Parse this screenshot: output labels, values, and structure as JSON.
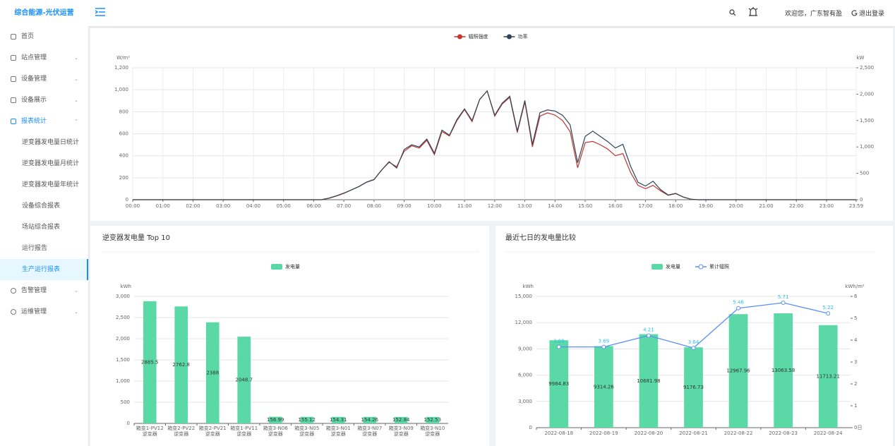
{
  "header": {
    "brand": "综合能源-光伏运营",
    "welcome": "欢迎您，广东智有盈",
    "logout": "退出登录"
  },
  "sidebar": {
    "menu": [
      "首页",
      "站点管理",
      "设备管理",
      "设备展示",
      "报表统计",
      "告警管理",
      "运维管理"
    ],
    "submenu": [
      "逆变器发电量日统计",
      "逆变器发电量月统计",
      "逆变器发电量年统计",
      "设备综合报表",
      "场站综合报表",
      "运行报告",
      "生产运行报表"
    ]
  },
  "chart_data": [
    {
      "type": "line",
      "legend_position": "top",
      "grid": true,
      "y_label": "W/m²",
      "y2_label": "kW",
      "x": [
        "00:00",
        "06:00",
        "06:15",
        "06:30",
        "06:45",
        "07:00",
        "07:15",
        "07:30",
        "07:45",
        "08:00",
        "08:15",
        "08:30",
        "08:45",
        "09:00",
        "09:15",
        "09:30",
        "09:45",
        "10:00",
        "10:15",
        "10:30",
        "10:45",
        "11:00",
        "11:15",
        "11:30",
        "11:45",
        "12:00",
        "12:15",
        "12:30",
        "12:45",
        "13:00",
        "13:15",
        "13:30",
        "13:45",
        "14:00",
        "14:15",
        "14:30",
        "14:45",
        "15:00",
        "15:15",
        "15:30",
        "15:45",
        "16:00",
        "16:15",
        "16:30",
        "16:45",
        "17:00",
        "17:15",
        "17:30",
        "17:45",
        "18:00",
        "18:15",
        "18:30",
        "18:45",
        "19:00",
        "23:59"
      ],
      "series": [
        {
          "name": "辐照强度",
          "color": "#c23531",
          "values": [
            0,
            0,
            0,
            15,
            35,
            60,
            90,
            120,
            160,
            185,
            270,
            340,
            300,
            440,
            490,
            470,
            540,
            410,
            620,
            580,
            720,
            820,
            710,
            910,
            990,
            760,
            870,
            930,
            610,
            890,
            480,
            760,
            790,
            770,
            720,
            620,
            290,
            520,
            530,
            500,
            460,
            400,
            420,
            250,
            130,
            100,
            130,
            80,
            40,
            55,
            25,
            5,
            0,
            0,
            0
          ]
        },
        {
          "name": "功率",
          "color": "#2f4554",
          "axis": "y2",
          "values": [
            0,
            0,
            0,
            25,
            70,
            120,
            185,
            250,
            330,
            380,
            560,
            720,
            600,
            950,
            1040,
            1000,
            1150,
            880,
            1320,
            1220,
            1520,
            1720,
            1500,
            1900,
            2060,
            1600,
            1830,
            1960,
            1300,
            1880,
            1050,
            1650,
            1700,
            1680,
            1600,
            1420,
            700,
            1200,
            1300,
            1200,
            1100,
            980,
            1050,
            640,
            330,
            260,
            350,
            190,
            90,
            120,
            50,
            10,
            0,
            0,
            0
          ]
        }
      ],
      "xticks": [
        "00:00",
        "01:00",
        "02:00",
        "03:00",
        "04:00",
        "05:00",
        "06:00",
        "07:00",
        "08:00",
        "09:00",
        "10:00",
        "11:00",
        "12:00",
        "13:00",
        "14:00",
        "15:00",
        "16:00",
        "17:00",
        "18:00",
        "19:00",
        "20:00",
        "21:00",
        "22:00",
        "23:00",
        "23:59"
      ],
      "ylim": [
        0,
        1200
      ],
      "yticks": [
        0,
        200,
        400,
        600,
        800,
        {
          "value": 1000,
          "label": "1,000"
        },
        {
          "value": 1200,
          "label": "1,200"
        }
      ],
      "y2lim": [
        0,
        2500
      ],
      "y2ticks": [
        0,
        500,
        {
          "value": 1000,
          "label": "1,000"
        },
        {
          "value": 1500,
          "label": "1,500"
        },
        {
          "value": 2000,
          "label": "2,000"
        },
        {
          "value": 2500,
          "label": "2,500"
        }
      ]
    },
    {
      "type": "bar",
      "title": "逆变器发电量 Top 10",
      "legend_position": "top",
      "grid": true,
      "y_label": "kWh",
      "categories": [
        "箱变1-PV12逆变器",
        "箱变2-PV22逆变器",
        "箱变2-PV21逆变器",
        "箱变1-PV11逆变器",
        "箱变3-N06逆变器",
        "箱变3-N05逆变器",
        "箱变3-N01逆变器",
        "箱变3-N07逆变器",
        "箱变3-N09逆变器",
        "箱变3-N10逆变器"
      ],
      "series": [
        {
          "name": "发电量",
          "color": "#5ad8a6",
          "values": [
            2885.5,
            2762.8,
            2388,
            2048.7,
            156.99,
            155.12,
            154.31,
            154.26,
            152.84,
            152.53
          ]
        }
      ],
      "ylim": [
        0,
        3000
      ],
      "yticks": [
        0,
        500,
        {
          "value": 1000,
          "label": "1,000"
        },
        {
          "value": 1500,
          "label": "1,500"
        },
        {
          "value": 2000,
          "label": "2,000"
        },
        {
          "value": 2500,
          "label": "2,500"
        },
        {
          "value": 3000,
          "label": "3,000"
        }
      ]
    },
    {
      "type": "bar",
      "title": "最近七日的发电量比较",
      "legend_position": "top",
      "grid": true,
      "y_label": "kWh",
      "y2_label": "kWh/m²",
      "categories": [
        "2022-08-18",
        "2022-08-19",
        "2022-08-20",
        "2022-08-21",
        "2022-08-22",
        "2022-08-23",
        "2022-08-24"
      ],
      "series": [
        {
          "name": "发电量",
          "color": "#5ad8a6",
          "values": [
            9984.83,
            9314.26,
            10681.98,
            9176.73,
            12967.96,
            13063.58,
            11713.21
          ]
        },
        {
          "name": "累计辐照",
          "type": "line",
          "axis": "y2",
          "color": "#5b8ff9",
          "label_color": "#2bbfe0",
          "values": [
            3.69,
            3.69,
            4.21,
            3.64,
            5.46,
            5.71,
            5.22
          ]
        }
      ],
      "ylim": [
        0,
        15000
      ],
      "yticks": [
        0,
        {
          "value": 3000,
          "label": "3,000"
        },
        {
          "value": 6000,
          "label": "6,000"
        },
        {
          "value": 9000,
          "label": "9,000"
        },
        {
          "value": 12000,
          "label": "12,000"
        },
        {
          "value": 15000,
          "label": "15,000"
        }
      ],
      "y2lim": [
        0,
        6
      ],
      "y2ticks": [
        {
          "value": 0,
          "label": "0日"
        },
        1,
        2,
        3,
        4,
        5,
        6
      ]
    }
  ]
}
